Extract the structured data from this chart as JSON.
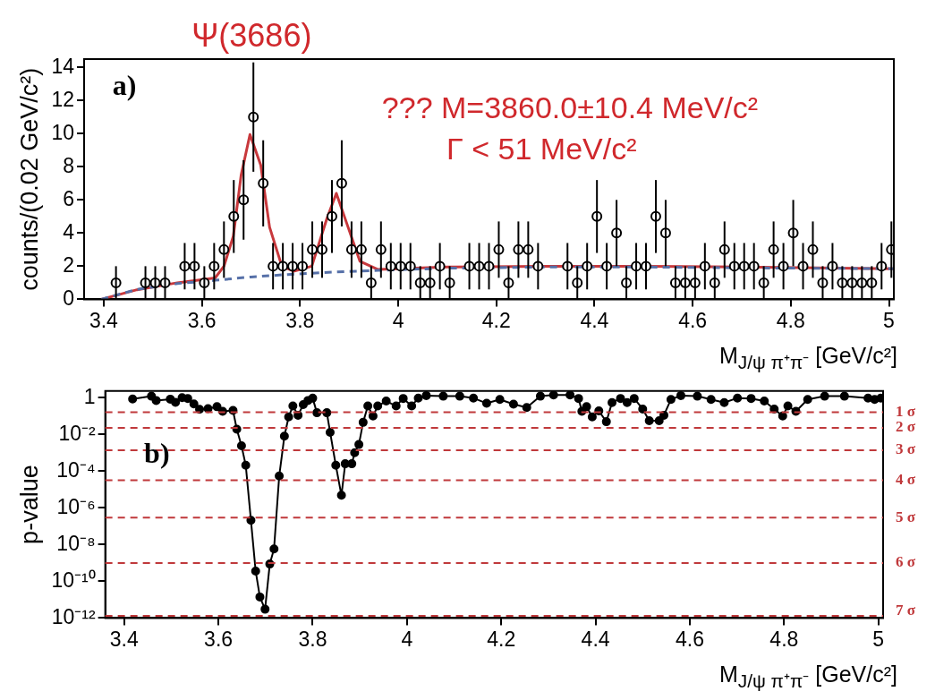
{
  "chart_data": [
    {
      "type": "scatter",
      "xlabel": "M$_{J/ψ π⁺π⁻}$ [GeV/c²]",
      "ylabel": "counts/(0.02 GeV/c²)",
      "xlim": [
        3.36,
        5.01
      ],
      "ylim": [
        0,
        14.5
      ],
      "xticks": [
        3.4,
        3.6,
        3.8,
        4,
        4.2,
        4.4,
        4.6,
        4.8,
        5
      ],
      "yticks": [
        0,
        2,
        4,
        6,
        8,
        10,
        12,
        14
      ],
      "marker": "circle",
      "annotations": [
        "Ψ(3686)",
        "a)",
        "??? M=3860.0±10.4 MeV/c²",
        "Γ < 51 MeV/c²"
      ],
      "series": [
        {
          "type": "scatter",
          "color": "#000000",
          "x": [
            3.425,
            3.485,
            3.505,
            3.525,
            3.565,
            3.585,
            3.605,
            3.625,
            3.645,
            3.665,
            3.685,
            3.705,
            3.725,
            3.745,
            3.765,
            3.785,
            3.805,
            3.825,
            3.845,
            3.865,
            3.885,
            3.905,
            3.925,
            3.945,
            3.965,
            3.985,
            4.005,
            4.025,
            4.045,
            4.065,
            4.085,
            4.105,
            4.145,
            4.165,
            4.185,
            4.205,
            4.225,
            4.245,
            4.265,
            4.285,
            4.345,
            4.365,
            4.385,
            4.405,
            4.425,
            4.445,
            4.465,
            4.485,
            4.505,
            4.525,
            4.545,
            4.565,
            4.585,
            4.605,
            4.625,
            4.645,
            4.665,
            4.685,
            4.705,
            4.725,
            4.745,
            4.765,
            4.785,
            4.805,
            4.825,
            4.845,
            4.865,
            4.885,
            4.905,
            4.925,
            4.945,
            4.965,
            4.985,
            5.005
          ],
          "values": [
            1,
            1,
            1,
            1,
            2,
            2,
            1,
            2,
            3,
            5,
            6,
            11,
            7,
            2,
            2,
            2,
            2,
            3,
            3,
            5,
            7,
            3,
            3,
            1,
            3,
            2,
            2,
            2,
            1,
            1,
            2,
            1,
            2,
            2,
            2,
            3,
            1,
            3,
            3,
            2,
            2,
            1,
            2,
            5,
            2,
            4,
            1,
            2,
            2,
            5,
            4,
            1,
            1,
            1,
            2,
            1,
            3,
            2,
            2,
            2,
            1,
            3,
            2,
            4,
            2,
            3,
            1,
            2,
            1,
            1,
            1,
            1,
            2,
            3
          ],
          "errors": [
            1,
            1,
            1,
            1,
            1.4,
            1.4,
            1,
            1.4,
            1.7,
            2.2,
            2.4,
            3.3,
            2.6,
            1.4,
            1.4,
            1.4,
            1.4,
            1.7,
            1.7,
            2.2,
            2.6,
            1.7,
            1.7,
            1,
            1.7,
            1.4,
            1.4,
            1.4,
            1,
            1,
            1.4,
            1,
            1.4,
            1.4,
            1.4,
            1.7,
            1,
            1.7,
            1.7,
            1.4,
            1.4,
            1,
            1.4,
            2.2,
            1.4,
            2,
            1,
            1.4,
            1.4,
            2.2,
            2,
            1,
            1,
            1,
            1.4,
            1,
            1.7,
            1.4,
            1.4,
            1.4,
            1,
            1.7,
            1.4,
            2,
            1.4,
            1.7,
            1,
            1.4,
            1,
            1,
            1,
            1,
            1.4,
            1.7
          ]
        },
        {
          "type": "line",
          "marker": "none",
          "line_style": "dashed",
          "color": "#5670a8",
          "x": [
            3.395,
            3.468,
            3.55,
            3.627,
            3.7,
            3.775,
            3.85,
            3.959,
            4.1,
            4.3,
            4.5,
            4.7,
            5.01
          ],
          "values": [
            0,
            0.6,
            0.95,
            1.15,
            1.35,
            1.5,
            1.62,
            1.75,
            1.88,
            1.95,
            1.95,
            1.9,
            1.85
          ]
        },
        {
          "type": "line",
          "marker": "none",
          "line_style": "solid",
          "color": "#c8383c",
          "x": [
            3.395,
            3.468,
            3.55,
            3.627,
            3.645,
            3.664,
            3.68,
            3.698,
            3.72,
            3.738,
            3.763,
            3.787,
            3.824,
            3.855,
            3.874,
            3.898,
            3.922,
            3.959,
            4.1,
            4.3,
            4.5,
            4.7,
            5.01
          ],
          "values": [
            0,
            0.58,
            1.0,
            1.29,
            2.0,
            3.8,
            7.5,
            9.95,
            8.1,
            4.35,
            2.0,
            1.7,
            2.0,
            4.9,
            6.4,
            4.35,
            2.3,
            1.8,
            1.95,
            2.0,
            2.0,
            1.95,
            1.85
          ]
        }
      ]
    },
    {
      "type": "line",
      "xlabel": "M$_{J/ψ π⁺π⁻}$ [GeV/c²]",
      "ylabel": "p-value",
      "log": "y",
      "xlim": [
        3.36,
        5.01
      ],
      "ylim": [
        1e-12,
        2.3
      ],
      "xticks": [
        3.4,
        3.6,
        3.8,
        4,
        4.2,
        4.4,
        4.6,
        4.8,
        5
      ],
      "yticks": [
        {
          "value": 1e-12,
          "label": "10⁻¹²"
        },
        {
          "value": 1e-10,
          "label": "10⁻¹⁰"
        },
        {
          "value": 1e-08,
          "label": "10⁻⁸"
        },
        {
          "value": 1e-06,
          "label": "10⁻⁶"
        },
        {
          "value": 0.0001,
          "label": "10⁻⁴"
        },
        {
          "value": 0.01,
          "label": "10⁻²"
        },
        1
      ],
      "marker": "circle",
      "annotations": [
        "b)"
      ],
      "ref_lines": [
        {
          "axis": "y",
          "value": 0.159,
          "label": "1 σ",
          "color": "#c0393b",
          "line_style": "dashed"
        },
        {
          "axis": "y",
          "value": 0.0228,
          "label": "2 σ",
          "color": "#c0393b",
          "line_style": "dashed"
        },
        {
          "axis": "y",
          "value": 0.00135,
          "label": "3 σ",
          "color": "#c0393b",
          "line_style": "dashed"
        },
        {
          "axis": "y",
          "value": 3.2e-05,
          "label": "4 σ",
          "color": "#c0393b",
          "line_style": "dashed"
        },
        {
          "axis": "y",
          "value": 2.9e-07,
          "label": "5 σ",
          "color": "#c0393b",
          "line_style": "dashed"
        },
        {
          "axis": "y",
          "value": 9.9e-10,
          "label": "6 σ",
          "color": "#c0393b",
          "line_style": "dashed"
        },
        {
          "axis": "y",
          "value": 1.3e-12,
          "label": "7 σ",
          "color": "#c0393b",
          "line_style": "dashed"
        }
      ],
      "series": [
        {
          "color": "#000000",
          "line_style": "solid",
          "x": [
            3.418,
            3.458,
            3.468,
            3.498,
            3.509,
            3.523,
            3.535,
            3.548,
            3.56,
            3.578,
            3.597,
            3.609,
            3.631,
            3.639,
            3.649,
            3.658,
            3.669,
            3.679,
            3.688,
            3.699,
            3.709,
            3.718,
            3.729,
            3.74,
            3.749,
            3.758,
            3.769,
            3.78,
            3.79,
            3.8,
            3.809,
            3.83,
            3.837,
            3.849,
            3.861,
            3.869,
            3.883,
            3.889,
            3.898,
            3.907,
            3.917,
            3.928,
            3.938,
            3.956,
            3.977,
            3.992,
            4.01,
            4.024,
            4.041,
            4.077,
            4.112,
            4.141,
            4.169,
            4.197,
            4.226,
            4.254,
            4.283,
            4.311,
            4.346,
            4.364,
            4.371,
            4.381,
            4.393,
            4.407,
            4.423,
            4.435,
            4.453,
            4.467,
            4.482,
            4.5,
            4.514,
            4.535,
            4.545,
            4.56,
            4.581,
            4.616,
            4.645,
            4.673,
            4.701,
            4.73,
            4.758,
            4.779,
            4.797,
            4.808,
            4.825,
            4.85,
            4.886,
            4.928,
            4.978,
            4.992,
            5.005
          ],
          "values": [
            0.84,
            1.2,
            0.7,
            0.83,
            0.56,
            1.0,
            0.9,
            0.45,
            0.23,
            0.25,
            0.32,
            0.18,
            0.2,
            0.019,
            0.0024,
            0.00021,
            2.1e-07,
            3.6e-10,
            1.4e-11,
            3e-12,
            8.7e-10,
            5.8e-09,
            5.4e-05,
            0.008,
            0.09,
            0.35,
            0.11,
            0.42,
            0.7,
            0.93,
            0.15,
            0.15,
            0.013,
            0.00021,
            4.8e-06,
            0.00025,
            0.00025,
            0.001,
            0.0028,
            0.045,
            0.35,
            0.1,
            0.35,
            0.65,
            0.35,
            0.9,
            0.35,
            0.95,
            1.3,
            1.2,
            1.2,
            0.95,
            0.49,
            0.8,
            0.44,
            0.29,
            1.2,
            1.4,
            1.4,
            0.9,
            0.18,
            0.32,
            0.09,
            0.19,
            0.049,
            0.54,
            0.9,
            0.54,
            0.9,
            0.24,
            0.055,
            0.055,
            0.11,
            0.8,
            1.3,
            1.2,
            0.8,
            0.54,
            0.95,
            0.9,
            0.65,
            0.24,
            0.1,
            0.35,
            0.18,
            0.8,
            1.2,
            1.2,
            0.95,
            0.8,
            0.95
          ]
        }
      ]
    }
  ]
}
